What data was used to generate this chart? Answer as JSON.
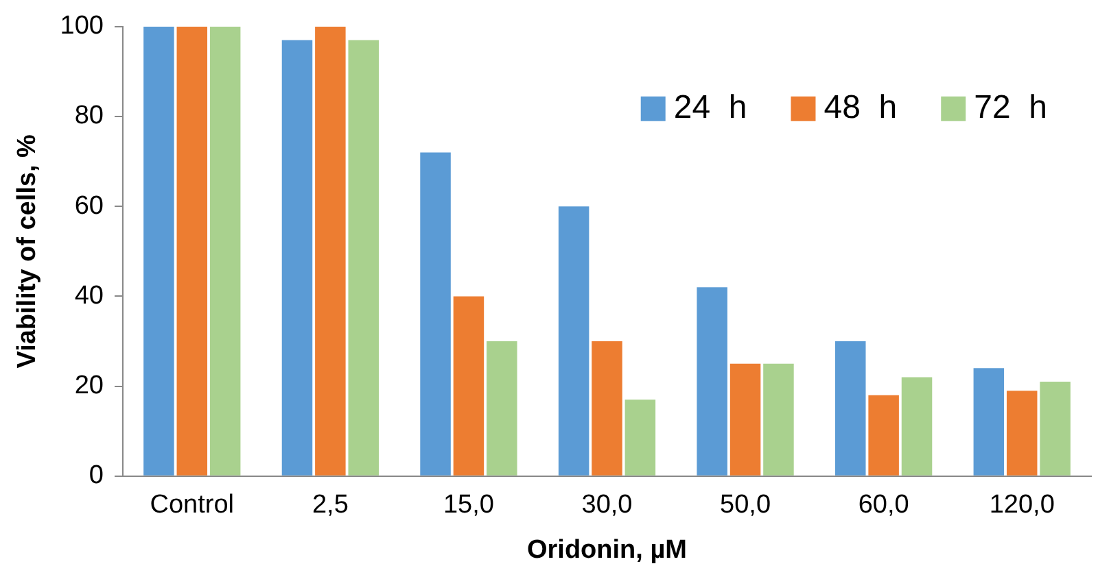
{
  "chart_data": {
    "type": "bar",
    "xlabel": "Oridonin, µM",
    "ylabel": "Viability of cells, %",
    "categories": [
      "Control",
      "2,5",
      "15,0",
      "30,0",
      "50,0",
      "60,0",
      "120,0"
    ],
    "series": [
      {
        "name": "24  h",
        "color": "#5b9bd5",
        "values": [
          100,
          97,
          72,
          60,
          42,
          30,
          24
        ]
      },
      {
        "name": "48  h",
        "color": "#ed7d31",
        "values": [
          100,
          100,
          40,
          30,
          25,
          18,
          19
        ]
      },
      {
        "name": "72  h",
        "color": "#a9d18e",
        "values": [
          100,
          97,
          30,
          17,
          25,
          22,
          21
        ]
      }
    ],
    "ylim": [
      0,
      100
    ],
    "yticks": [
      0,
      20,
      40,
      60,
      80,
      100
    ],
    "grid": false,
    "legend": "top right"
  }
}
